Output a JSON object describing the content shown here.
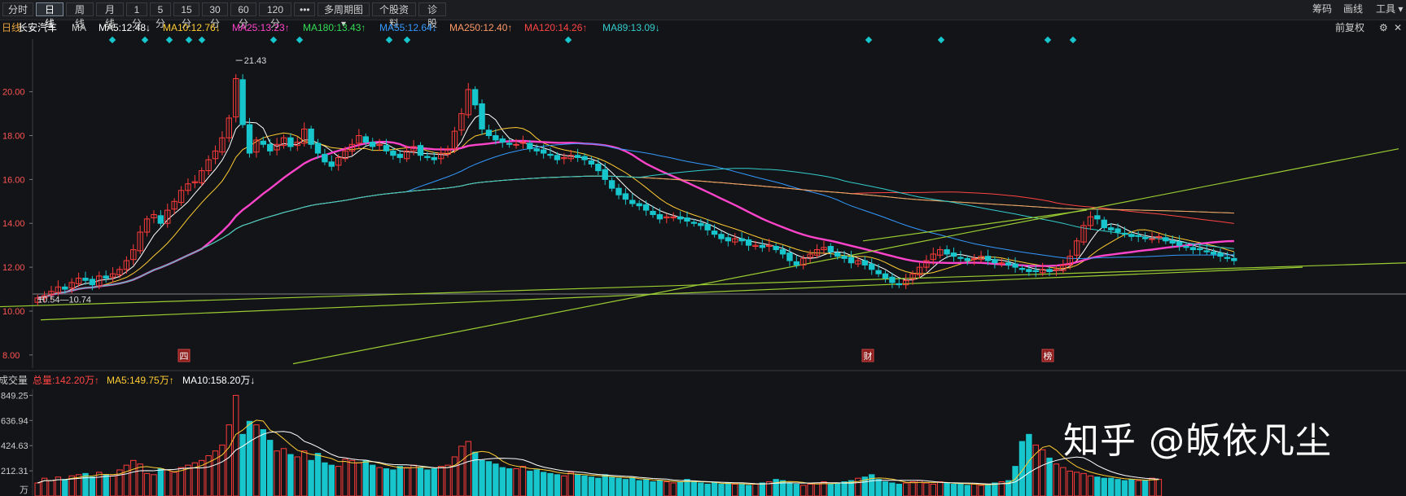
{
  "toolbar": {
    "tabs": [
      "分时",
      "日线",
      "周线",
      "月线",
      "1分",
      "5分",
      "15分",
      "30分",
      "60分",
      "120分",
      "•••",
      "多周期图 ▾",
      "个股资料",
      "诊股"
    ],
    "active_tab": "日线",
    "right_items": [
      "筹码",
      "画线",
      "工具 ▾"
    ]
  },
  "header": {
    "prefix": "日线",
    "stock_name": "长安汽车",
    "ma_label": "MA",
    "restore_label": "前复权",
    "ma_items": [
      {
        "label": "MA5:12.48↓",
        "color": "#ffffff"
      },
      {
        "label": "MA10:12.76↓",
        "color": "#ffcc33"
      },
      {
        "label": "MA25:13.23↑",
        "color": "#ff44cc"
      },
      {
        "label": "MA180:13.43↑",
        "color": "#33dd55"
      },
      {
        "label": "MA55:12.64↓",
        "color": "#3399ff"
      },
      {
        "label": "MA250:12.40↑",
        "color": "#ff9966"
      },
      {
        "label": "MA120:14.26↑",
        "color": "#ff4444"
      },
      {
        "label": "MA89:13.09↓",
        "color": "#33cccc"
      }
    ]
  },
  "volume_header": {
    "title": "成交量",
    "items": [
      {
        "label": "总量:142.20万↑",
        "color": "#ff4444"
      },
      {
        "label": "MA5:149.75万↑",
        "color": "#ffcc33"
      },
      {
        "label": "MA10:158.20万↓",
        "color": "#ffffff"
      }
    ]
  },
  "watermark": "知乎 @皈依凡尘",
  "colors": {
    "up": "#ff3b3b",
    "down": "#17c6cc",
    "background": "#131417",
    "grid": "#2a2b30"
  },
  "chart_data": {
    "type": "candlestick",
    "price_axis": {
      "ticks": [
        8.0,
        10.0,
        12.0,
        14.0,
        16.0,
        18.0,
        20.0
      ],
      "range": [
        7.4,
        22.4
      ]
    },
    "volume_axis": {
      "ticks": [
        "849.25",
        "636.94",
        "424.63",
        "212.31",
        "万"
      ],
      "range": [
        0,
        900
      ]
    },
    "annotations": {
      "high": "21.43",
      "low": "10.54",
      "low2": "10.74"
    },
    "markers": [
      "四",
      "财",
      "榜"
    ],
    "price_path": [
      10.6,
      10.7,
      10.9,
      11.1,
      11.0,
      11.3,
      11.5,
      11.4,
      11.2,
      11.6,
      11.5,
      11.7,
      11.9,
      12.3,
      12.8,
      13.6,
      14.2,
      14.4,
      14.0,
      14.6,
      15.0,
      15.5,
      15.8,
      15.9,
      16.4,
      16.9,
      17.3,
      17.9,
      18.8,
      20.6,
      18.5,
      17.2,
      17.8,
      17.6,
      17.3,
      17.6,
      17.9,
      17.5,
      17.7,
      18.3,
      17.6,
      17.2,
      16.8,
      16.6,
      17.0,
      17.3,
      17.6,
      18.0,
      17.7,
      17.5,
      17.6,
      17.3,
      17.1,
      17.0,
      17.3,
      17.5,
      17.1,
      17.0,
      16.9,
      17.2,
      17.4,
      18.2,
      19.0,
      20.1,
      19.4,
      18.3,
      18.0,
      17.8,
      17.7,
      17.6,
      17.6,
      17.7,
      17.4,
      17.3,
      17.2,
      17.1,
      16.9,
      17.0,
      17.1,
      17.0,
      16.9,
      16.7,
      16.4,
      16.0,
      15.6,
      15.3,
      15.1,
      14.9,
      14.8,
      14.6,
      14.4,
      14.2,
      14.3,
      14.3,
      14.2,
      14.1,
      14.0,
      13.9,
      13.7,
      13.5,
      13.3,
      13.2,
      13.3,
      13.2,
      13.0,
      13.0,
      12.9,
      13.0,
      12.8,
      12.6,
      12.3,
      12.1,
      12.4,
      12.6,
      12.8,
      12.9,
      12.7,
      12.5,
      12.4,
      12.2,
      12.3,
      12.1,
      11.9,
      11.7,
      11.5,
      11.3,
      11.2,
      11.4,
      11.7,
      12.0,
      12.3,
      12.6,
      12.8,
      12.6,
      12.5,
      12.4,
      12.3,
      12.4,
      12.5,
      12.3,
      12.2,
      12.2,
      12.1,
      12.0,
      11.9,
      11.8,
      11.8,
      11.9,
      11.8,
      11.9,
      12.1,
      12.5,
      13.2,
      13.9,
      14.3,
      14.2,
      13.8,
      13.7,
      13.6,
      13.5,
      13.4,
      13.4,
      13.3,
      13.3,
      13.4,
      13.2,
      13.1,
      13.0,
      12.9,
      12.8,
      12.8,
      12.7,
      12.6,
      12.5,
      12.4,
      12.3
    ],
    "volume_path": [
      110,
      150,
      130,
      160,
      140,
      170,
      180,
      190,
      160,
      200,
      180,
      170,
      220,
      260,
      300,
      270,
      190,
      180,
      230,
      220,
      200,
      240,
      260,
      280,
      300,
      340,
      380,
      430,
      600,
      849,
      520,
      630,
      600,
      560,
      470,
      380,
      400,
      350,
      330,
      380,
      300,
      360,
      280,
      260,
      250,
      310,
      300,
      280,
      300,
      260,
      240,
      230,
      220,
      250,
      240,
      260,
      240,
      220,
      230,
      250,
      260,
      330,
      420,
      460,
      370,
      300,
      290,
      270,
      240,
      230,
      230,
      250,
      210,
      220,
      200,
      190,
      180,
      170,
      200,
      180,
      170,
      160,
      150,
      180,
      160,
      150,
      140,
      150,
      130,
      140,
      120,
      130,
      120,
      110,
      120,
      140,
      120,
      110,
      100,
      110,
      100,
      110,
      100,
      100,
      90,
      100,
      110,
      120,
      140,
      130,
      110,
      100,
      90,
      100,
      110,
      120,
      100,
      110,
      120,
      130,
      150,
      160,
      180,
      140,
      120,
      110,
      100,
      110,
      120,
      130,
      110,
      100,
      120,
      110,
      100,
      100,
      90,
      100,
      90,
      100,
      110,
      120,
      130,
      250,
      460,
      520,
      430,
      390,
      320,
      270,
      240,
      210,
      200,
      190,
      170,
      160,
      150,
      150,
      140,
      130,
      140,
      130,
      130,
      150,
      140
    ]
  }
}
